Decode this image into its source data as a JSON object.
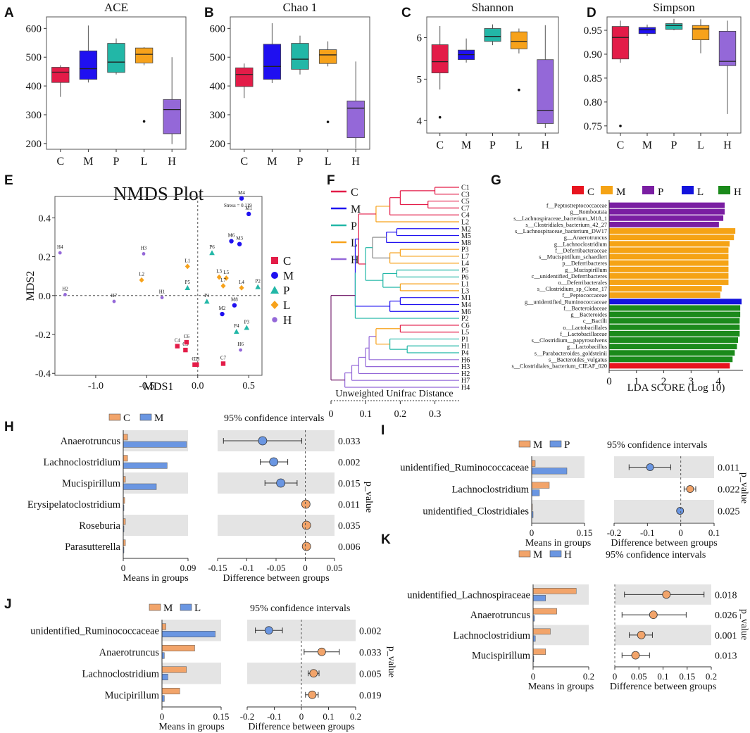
{
  "colors": {
    "C": "#e31c48",
    "M": "#1f10f0",
    "P": "#22b7a7",
    "L": "#f7a21b",
    "H": "#9468d8",
    "bar_orange": "#f2a46a",
    "bar_blue": "#6a96e2",
    "lda_C": "#e8141f",
    "lda_M": "#f5a315",
    "lda_P": "#7a1ea2",
    "lda_L": "#1313dd",
    "lda_H": "#1b8a1b",
    "bg_band": "#e4e4e4"
  },
  "panel_labels": {
    "A": "A",
    "B": "B",
    "C": "C",
    "D": "D",
    "E": "E",
    "F": "F",
    "G": "G",
    "H": "H",
    "I": "I",
    "J": "J",
    "K": "K"
  },
  "chart_data": [
    {
      "panel": "A",
      "type": "box",
      "title": "ACE",
      "categories": [
        "C",
        "M",
        "P",
        "L",
        "H"
      ],
      "ylim": [
        180,
        640
      ],
      "yticks": [
        "200",
        "300",
        "400",
        "500",
        "600"
      ],
      "boxes": [
        {
          "min": 362,
          "q1": 412,
          "med": 448,
          "q3": 465,
          "max": 472,
          "out": []
        },
        {
          "min": 412,
          "q1": 423,
          "med": 460,
          "q3": 522,
          "max": 610,
          "out": []
        },
        {
          "min": 440,
          "q1": 447,
          "med": 483,
          "q3": 548,
          "max": 565,
          "out": []
        },
        {
          "min": 472,
          "q1": 480,
          "med": 510,
          "q3": 532,
          "max": 535,
          "out": [
            277
          ]
        },
        {
          "min": 198,
          "q1": 234,
          "med": 318,
          "q3": 353,
          "max": 500,
          "out": []
        }
      ]
    },
    {
      "panel": "B",
      "type": "box",
      "title": "Chao 1",
      "categories": [
        "C",
        "M",
        "P",
        "L",
        "H"
      ],
      "ylim": [
        180,
        640
      ],
      "yticks": [
        "200",
        "300",
        "400",
        "500",
        "600"
      ],
      "boxes": [
        {
          "min": 358,
          "q1": 398,
          "med": 440,
          "q3": 463,
          "max": 478,
          "out": []
        },
        {
          "min": 410,
          "q1": 423,
          "med": 468,
          "q3": 545,
          "max": 618,
          "out": []
        },
        {
          "min": 440,
          "q1": 458,
          "med": 493,
          "q3": 548,
          "max": 575,
          "out": []
        },
        {
          "min": 468,
          "q1": 478,
          "med": 508,
          "q3": 526,
          "max": 555,
          "out": [
            275
          ]
        },
        {
          "min": 183,
          "q1": 220,
          "med": 323,
          "q3": 348,
          "max": 485,
          "out": []
        }
      ]
    },
    {
      "panel": "C",
      "type": "box",
      "title": "Shannon",
      "categories": [
        "C",
        "M",
        "P",
        "L",
        "H"
      ],
      "ylim": [
        3.7,
        6.5
      ],
      "yticks": [
        "4",
        "5",
        "6"
      ],
      "boxes": [
        {
          "min": 4.75,
          "q1": 5.15,
          "med": 5.42,
          "q3": 5.83,
          "max": 6.28,
          "out": [
            4.08
          ]
        },
        {
          "min": 5.4,
          "q1": 5.47,
          "med": 5.59,
          "q3": 5.7,
          "max": 5.98,
          "out": []
        },
        {
          "min": 5.82,
          "q1": 5.91,
          "med": 6.03,
          "q3": 6.22,
          "max": 6.32,
          "out": []
        },
        {
          "min": 5.62,
          "q1": 5.73,
          "med": 5.91,
          "q3": 6.14,
          "max": 6.22,
          "out": [
            4.74
          ]
        },
        {
          "min": 3.82,
          "q1": 3.93,
          "med": 4.25,
          "q3": 5.47,
          "max": 6.3,
          "out": []
        }
      ]
    },
    {
      "panel": "D",
      "type": "box",
      "title": "Simpson",
      "categories": [
        "C",
        "M",
        "P",
        "L",
        "H"
      ],
      "ylim": [
        0.735,
        0.978
      ],
      "yticks": [
        "0.75",
        "0.80",
        "0.85",
        "0.90",
        "0.95"
      ],
      "boxes": [
        {
          "min": 0.882,
          "q1": 0.89,
          "med": 0.935,
          "q3": 0.958,
          "max": 0.97,
          "out": [
            0.75
          ]
        },
        {
          "min": 0.938,
          "q1": 0.943,
          "med": 0.951,
          "q3": 0.956,
          "max": 0.962,
          "out": []
        },
        {
          "min": 0.95,
          "q1": 0.952,
          "med": 0.96,
          "q3": 0.964,
          "max": 0.974,
          "out": []
        },
        {
          "min": 0.902,
          "q1": 0.93,
          "med": 0.953,
          "q3": 0.96,
          "max": 0.973,
          "out": []
        },
        {
          "min": 0.775,
          "q1": 0.876,
          "med": 0.885,
          "q3": 0.948,
          "max": 0.97,
          "out": []
        }
      ]
    },
    {
      "panel": "E",
      "type": "scatter",
      "title": "NMDS Plot",
      "xlabel": "MDS1",
      "ylabel": "MDS2",
      "stress": "Stress = 0.119",
      "xlim": [
        -1.4,
        0.63
      ],
      "ylim": [
        -0.41,
        0.51
      ],
      "xticks": [
        "-1.0",
        "-0.5",
        "0.0",
        "0.5"
      ],
      "yticks": [
        "-0.4",
        "-0.2",
        "0.0",
        "0.2",
        "0.4"
      ],
      "legend": [
        "C",
        "M",
        "P",
        "L",
        "H"
      ],
      "points": [
        {
          "l": "C1",
          "g": "C",
          "x": -0.03,
          "y": -0.355
        },
        {
          "l": "C3",
          "g": "C",
          "x": -0.01,
          "y": -0.355
        },
        {
          "l": "C4",
          "g": "C",
          "x": -0.2,
          "y": -0.26
        },
        {
          "l": "C5",
          "g": "C",
          "x": -0.12,
          "y": -0.28
        },
        {
          "l": "C6",
          "g": "C",
          "x": -0.11,
          "y": -0.24
        },
        {
          "l": "C7",
          "g": "C",
          "x": 0.25,
          "y": -0.35
        },
        {
          "l": "M1",
          "g": "M",
          "x": 0.5,
          "y": 0.42
        },
        {
          "l": "M2",
          "g": "M",
          "x": 0.24,
          "y": -0.095
        },
        {
          "l": "M3",
          "g": "M",
          "x": 0.41,
          "y": 0.265
        },
        {
          "l": "M4",
          "g": "M",
          "x": 0.43,
          "y": 0.5
        },
        {
          "l": "M6",
          "g": "M",
          "x": 0.33,
          "y": 0.28
        },
        {
          "l": "M8",
          "g": "M",
          "x": 0.36,
          "y": -0.05
        },
        {
          "l": "P1",
          "g": "P",
          "x": 0.09,
          "y": -0.03
        },
        {
          "l": "P2",
          "g": "P",
          "x": 0.59,
          "y": 0.045
        },
        {
          "l": "P3",
          "g": "P",
          "x": 0.48,
          "y": -0.165
        },
        {
          "l": "P4",
          "g": "P",
          "x": 0.38,
          "y": -0.185
        },
        {
          "l": "P5",
          "g": "P",
          "x": -0.1,
          "y": 0.04
        },
        {
          "l": "P6",
          "g": "P",
          "x": 0.14,
          "y": 0.22
        },
        {
          "l": "L1",
          "g": "L",
          "x": -0.1,
          "y": 0.15
        },
        {
          "l": "L2",
          "g": "L",
          "x": -0.55,
          "y": 0.08
        },
        {
          "l": "L3",
          "g": "L",
          "x": 0.21,
          "y": 0.095
        },
        {
          "l": "L4",
          "g": "L",
          "x": 0.43,
          "y": 0.04
        },
        {
          "l": "L5",
          "g": "L",
          "x": 0.28,
          "y": 0.09
        },
        {
          "l": "L7",
          "g": "L",
          "x": 0.25,
          "y": 0.05
        },
        {
          "l": "H1",
          "g": "H",
          "x": -0.35,
          "y": -0.01
        },
        {
          "l": "H2",
          "g": "H",
          "x": -1.3,
          "y": 0.005
        },
        {
          "l": "H3",
          "g": "H",
          "x": -0.53,
          "y": 0.215
        },
        {
          "l": "H4",
          "g": "H",
          "x": -1.35,
          "y": 0.22
        },
        {
          "l": "H6",
          "g": "H",
          "x": 0.42,
          "y": -0.28
        },
        {
          "l": "H7",
          "g": "H",
          "x": -0.82,
          "y": -0.03
        }
      ]
    },
    {
      "panel": "F",
      "type": "dendrogram",
      "xlabel": "Unweighted Unifrac Distance",
      "xticks": [
        "0",
        "0.1",
        "0.2",
        "0.3"
      ],
      "legend": [
        "C",
        "M",
        "P",
        "L",
        "H"
      ],
      "leaves": [
        {
          "l": "C1",
          "g": "C"
        },
        {
          "l": "C3",
          "g": "C"
        },
        {
          "l": "C5",
          "g": "C"
        },
        {
          "l": "C7",
          "g": "C"
        },
        {
          "l": "C4",
          "g": "C"
        },
        {
          "l": "L2",
          "g": "L"
        },
        {
          "l": "M2",
          "g": "M"
        },
        {
          "l": "M5",
          "g": "M"
        },
        {
          "l": "M8",
          "g": "M"
        },
        {
          "l": "P3",
          "g": "P"
        },
        {
          "l": "L7",
          "g": "L"
        },
        {
          "l": "L4",
          "g": "L"
        },
        {
          "l": "P5",
          "g": "P"
        },
        {
          "l": "P6",
          "g": "P"
        },
        {
          "l": "L1",
          "g": "L"
        },
        {
          "l": "L3",
          "g": "L"
        },
        {
          "l": "M1",
          "g": "M"
        },
        {
          "l": "M4",
          "g": "M"
        },
        {
          "l": "M6",
          "g": "M"
        },
        {
          "l": "P2",
          "g": "P"
        },
        {
          "l": "C6",
          "g": "C"
        },
        {
          "l": "L5",
          "g": "L"
        },
        {
          "l": "P1",
          "g": "P"
        },
        {
          "l": "H1",
          "g": "H"
        },
        {
          "l": "P4",
          "g": "P"
        },
        {
          "l": "H6",
          "g": "H"
        },
        {
          "l": "H3",
          "g": "H"
        },
        {
          "l": "H2",
          "g": "H"
        },
        {
          "l": "H7",
          "g": "H"
        },
        {
          "l": "H4",
          "g": "H"
        }
      ]
    },
    {
      "panel": "G",
      "type": "hbar",
      "xlabel": "LDA SCORE (Log 10)",
      "xlim": [
        0,
        4.5
      ],
      "xticks": [
        "0",
        "1",
        "2",
        "3",
        "4"
      ],
      "legend": [
        "C",
        "M",
        "P",
        "L",
        "H"
      ],
      "bars": [
        {
          "n": "f__Peptostreptococcaceae",
          "g": "P",
          "v": 4.23
        },
        {
          "n": "g__Romboutsia",
          "g": "P",
          "v": 4.23
        },
        {
          "n": "s__Lachnospiraceae_bacterium_M18_1",
          "g": "P",
          "v": 4.18
        },
        {
          "n": "s__Clostridiales_bacterium_42_27",
          "g": "P",
          "v": 4.02
        },
        {
          "n": "s__Lachnospiraceae_bacterium_DW17",
          "g": "M",
          "v": 4.62
        },
        {
          "n": "g__Anaerotruncus",
          "g": "M",
          "v": 4.57
        },
        {
          "n": "g__Lachnoclostridium",
          "g": "M",
          "v": 4.41
        },
        {
          "n": "f__Deferribacteraceae",
          "g": "M",
          "v": 4.37
        },
        {
          "n": "s__Mucispirillum_schaedleri",
          "g": "M",
          "v": 4.37
        },
        {
          "n": "p__Deferribacteres",
          "g": "M",
          "v": 4.37
        },
        {
          "n": "g__Mucispirillum",
          "g": "M",
          "v": 4.37
        },
        {
          "n": "c__unidentified_Deferribacteres",
          "g": "M",
          "v": 4.37
        },
        {
          "n": "o__Deferribacterales",
          "g": "M",
          "v": 4.37
        },
        {
          "n": "s__Clostridium_sp_Clone_17",
          "g": "M",
          "v": 4.12
        },
        {
          "n": "f__Peptococcaceae",
          "g": "M",
          "v": 4.07
        },
        {
          "n": "g__unidentified_Ruminococcaceae",
          "g": "L",
          "v": 4.85
        },
        {
          "n": "f__Bacteroidaceae",
          "g": "H",
          "v": 4.8
        },
        {
          "n": "g__Bacteroides",
          "g": "H",
          "v": 4.8
        },
        {
          "n": "c__Bacilli",
          "g": "H",
          "v": 4.78
        },
        {
          "n": "o__Lactobacillales",
          "g": "H",
          "v": 4.78
        },
        {
          "n": "f__Lactobacillaceae",
          "g": "H",
          "v": 4.78
        },
        {
          "n": "s__Clostridium__papyrosolvens",
          "g": "H",
          "v": 4.72
        },
        {
          "n": "g__Lactobacillus",
          "g": "H",
          "v": 4.68
        },
        {
          "n": "s__Parabacteroides_goldsteinii",
          "g": "H",
          "v": 4.6
        },
        {
          "n": "s__Bacteroides_vulgatus",
          "g": "H",
          "v": 4.52
        },
        {
          "n": "s__Clostridiales_bacterium_CIEAF_020",
          "g": "C",
          "v": 4.42
        }
      ]
    },
    {
      "panel": "H",
      "type": "extended_error_bar",
      "groups": [
        "C",
        "M"
      ],
      "ci_title": "95% confidence intervals",
      "xlabel_means": "Means in groups",
      "xlabel_diff": "Difference between groups",
      "pvalue_label": "p_value",
      "means_ticks": [
        "0",
        "0.09"
      ],
      "means_max": 0.09,
      "diff_ticks": [
        "-0.15",
        "-0.1",
        "-0.05",
        "0",
        "0.05"
      ],
      "diff_range": [
        -0.15,
        0.05
      ],
      "rows": [
        {
          "n": "Anaerotruncus",
          "a": 0.006,
          "b": 0.088,
          "d": -0.073,
          "lo": -0.14,
          "hi": -0.006,
          "p": "0.033"
        },
        {
          "n": "Lachnoclostridium",
          "a": 0.006,
          "b": 0.061,
          "d": -0.054,
          "lo": -0.077,
          "hi": -0.03,
          "p": "0.002"
        },
        {
          "n": "Mucispirillum",
          "a": 0.003,
          "b": 0.046,
          "d": -0.042,
          "lo": -0.069,
          "hi": -0.014,
          "p": "0.015"
        },
        {
          "n": "Erysipelatoclostridium",
          "a": 0.002,
          "b": 0.0005,
          "d": 0.001,
          "lo": -0.002,
          "hi": 0.004,
          "p": "0.011"
        },
        {
          "n": "Roseburia",
          "a": 0.003,
          "b": 0.0005,
          "d": 0.002,
          "lo": -0.001,
          "hi": 0.005,
          "p": "0.035"
        },
        {
          "n": "Parasutterella",
          "a": 0.003,
          "b": 0.0005,
          "d": 0.002,
          "lo": 0.0,
          "hi": 0.004,
          "p": "0.006"
        }
      ]
    },
    {
      "panel": "I",
      "type": "extended_error_bar",
      "groups": [
        "M",
        "P"
      ],
      "ci_title": "95% confidence intervals",
      "xlabel_means": "Means in groups",
      "xlabel_diff": "Difference between groups",
      "pvalue_label": "p_value",
      "means_ticks": [
        "0",
        "0.15"
      ],
      "means_max": 0.15,
      "diff_ticks": [
        "-0.2",
        "-0.1",
        "0",
        "0.1"
      ],
      "diff_range": [
        -0.2,
        0.1
      ],
      "rows": [
        {
          "n": "unidentified_Ruminococcaceae",
          "a": 0.01,
          "b": 0.1,
          "d": -0.092,
          "lo": -0.155,
          "hi": -0.03,
          "p": "0.011"
        },
        {
          "n": "Lachnoclostridium",
          "a": 0.05,
          "b": 0.022,
          "d": 0.028,
          "lo": 0.01,
          "hi": 0.045,
          "p": "0.022"
        },
        {
          "n": "unidentified_Clostridiales",
          "a": 0.002,
          "b": 0.004,
          "d": -0.002,
          "lo": -0.006,
          "hi": 0.002,
          "p": "0.025"
        }
      ]
    },
    {
      "panel": "J",
      "type": "extended_error_bar",
      "groups": [
        "M",
        "L"
      ],
      "ci_title": "95% confidence intervals",
      "xlabel_means": "Means in groups",
      "xlabel_diff": "Difference between groups",
      "pvalue_label": "p_value",
      "means_ticks": [
        "0",
        "0.15"
      ],
      "means_max": 0.15,
      "diff_ticks": [
        "-0.2",
        "-0.1",
        "0",
        "0.1",
        "0.2"
      ],
      "diff_range": [
        -0.2,
        0.2
      ],
      "rows": [
        {
          "n": "unidentified_Ruminococcaceae",
          "a": 0.01,
          "b": 0.135,
          "d": -0.12,
          "lo": -0.17,
          "hi": -0.07,
          "p": "0.002"
        },
        {
          "n": "Anaerotruncus",
          "a": 0.083,
          "b": 0.006,
          "d": 0.075,
          "lo": 0.01,
          "hi": 0.14,
          "p": "0.033"
        },
        {
          "n": "Lachnoclostridium",
          "a": 0.062,
          "b": 0.015,
          "d": 0.045,
          "lo": 0.025,
          "hi": 0.065,
          "p": "0.005"
        },
        {
          "n": "Mucipirillum",
          "a": 0.045,
          "b": 0.006,
          "d": 0.04,
          "lo": 0.015,
          "hi": 0.062,
          "p": "0.019"
        }
      ]
    },
    {
      "panel": "K",
      "type": "extended_error_bar",
      "groups": [
        "M",
        "H"
      ],
      "ci_title": "95% confidence intervals",
      "xlabel_means": "Means in groups",
      "xlabel_diff": "Difference between groups",
      "pvalue_label": "p_value",
      "means_ticks": [
        "0",
        "0.2"
      ],
      "means_max": 0.2,
      "diff_ticks": [
        "0",
        "0.05",
        "0.1",
        "0.15",
        "0.2"
      ],
      "diff_range": [
        0,
        0.2
      ],
      "rows": [
        {
          "n": "unidentified_Lachnospiraceae",
          "a": 0.155,
          "b": 0.045,
          "d": 0.107,
          "lo": 0.02,
          "hi": 0.185,
          "p": "0.018"
        },
        {
          "n": "Anaerotruncus",
          "a": 0.085,
          "b": 0.005,
          "d": 0.08,
          "lo": 0.015,
          "hi": 0.148,
          "p": "0.026"
        },
        {
          "n": "Lachnoclostridium",
          "a": 0.062,
          "b": 0.008,
          "d": 0.055,
          "lo": 0.03,
          "hi": 0.078,
          "p": "0.001"
        },
        {
          "n": "Mucispirillum",
          "a": 0.045,
          "b": 0.002,
          "d": 0.043,
          "lo": 0.015,
          "hi": 0.072,
          "p": "0.013"
        }
      ]
    }
  ]
}
